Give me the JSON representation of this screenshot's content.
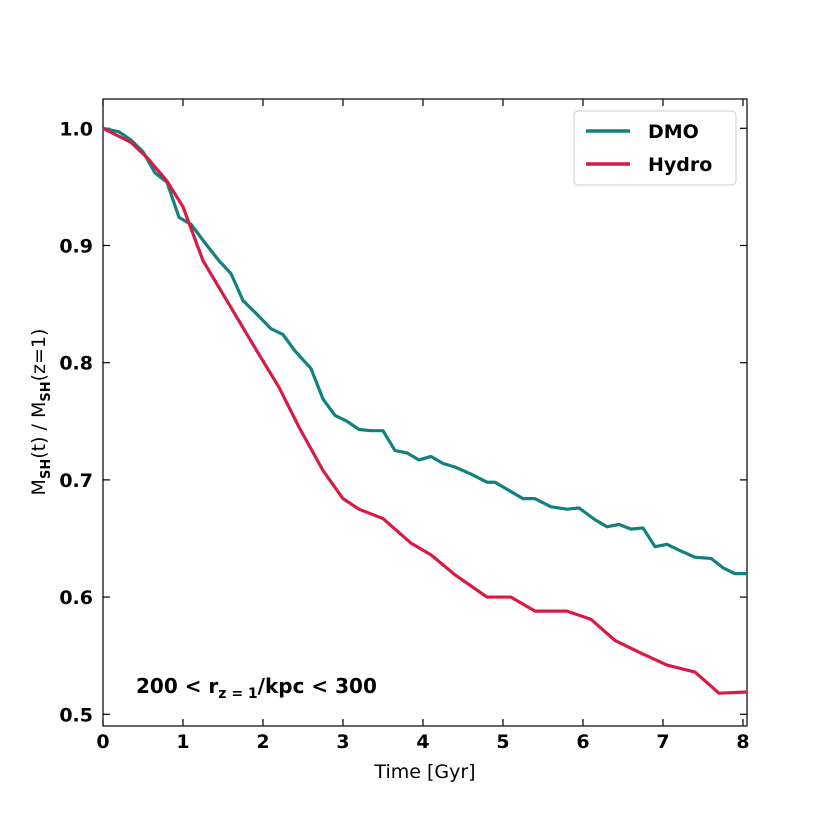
{
  "chart_data": {
    "type": "line",
    "title": "",
    "xlabel": "Time [Gyr]",
    "ylabel_parts": {
      "m1": "M",
      "sub1": "SH",
      "mid": "(t) / M",
      "sub2": "SH",
      "end": "(z=1)"
    },
    "xlim": [
      0,
      8.05
    ],
    "ylim": [
      0.49,
      1.025
    ],
    "x_ticks": [
      0,
      1,
      2,
      3,
      4,
      5,
      6,
      7,
      8
    ],
    "x_tick_labels": [
      "0",
      "1",
      "2",
      "3",
      "4",
      "5",
      "6",
      "7",
      "8"
    ],
    "y_ticks": [
      0.5,
      0.6,
      0.7,
      0.8,
      0.9,
      1.0
    ],
    "y_tick_labels": [
      "0.5",
      "0.6",
      "0.7",
      "0.8",
      "0.9",
      "1.0"
    ],
    "annotation": {
      "a": "200 < r",
      "sub": "z = 1",
      "b": "/kpc < 300"
    },
    "legend_position": "top-right",
    "series": [
      {
        "name": "DMO",
        "color": "#138080",
        "x": [
          0,
          0.2,
          0.35,
          0.5,
          0.65,
          0.8,
          0.95,
          1.1,
          1.3,
          1.45,
          1.6,
          1.75,
          1.9,
          2.1,
          2.25,
          2.4,
          2.6,
          2.75,
          2.9,
          3.05,
          3.2,
          3.35,
          3.5,
          3.65,
          3.8,
          3.95,
          4.1,
          4.25,
          4.4,
          4.6,
          4.8,
          4.9,
          5.05,
          5.25,
          5.4,
          5.6,
          5.8,
          5.95,
          6.15,
          6.3,
          6.45,
          6.6,
          6.75,
          6.9,
          7.05,
          7.2,
          7.4,
          7.6,
          7.75,
          7.9,
          8.05
        ],
        "values": [
          1.0,
          0.997,
          0.99,
          0.98,
          0.962,
          0.954,
          0.924,
          0.918,
          0.9,
          0.887,
          0.876,
          0.853,
          0.843,
          0.829,
          0.824,
          0.81,
          0.795,
          0.769,
          0.755,
          0.75,
          0.743,
          0.742,
          0.742,
          0.725,
          0.723,
          0.717,
          0.72,
          0.714,
          0.711,
          0.705,
          0.698,
          0.698,
          0.692,
          0.684,
          0.684,
          0.677,
          0.675,
          0.676,
          0.666,
          0.66,
          0.662,
          0.658,
          0.659,
          0.643,
          0.645,
          0.64,
          0.634,
          0.633,
          0.625,
          0.62,
          0.62
        ]
      },
      {
        "name": "Hydro",
        "color": "#d81b45",
        "x": [
          0,
          0.35,
          0.55,
          0.8,
          1.0,
          1.25,
          1.6,
          1.95,
          2.2,
          2.45,
          2.75,
          3.0,
          3.2,
          3.5,
          3.85,
          4.1,
          4.4,
          4.8,
          5.1,
          5.4,
          5.8,
          6.1,
          6.4,
          6.7,
          7.05,
          7.4,
          7.7,
          8.05
        ],
        "values": [
          1.0,
          0.988,
          0.975,
          0.955,
          0.933,
          0.887,
          0.847,
          0.807,
          0.779,
          0.745,
          0.708,
          0.684,
          0.675,
          0.667,
          0.646,
          0.636,
          0.619,
          0.6,
          0.6,
          0.588,
          0.588,
          0.581,
          0.563,
          0.553,
          0.542,
          0.536,
          0.518,
          0.519
        ]
      }
    ]
  }
}
